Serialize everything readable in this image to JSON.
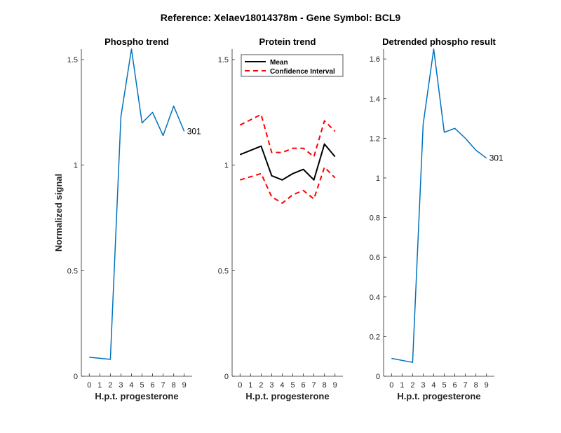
{
  "figure_title": "Reference:  Xelaev18014378m - Gene Symbol:  BCL9",
  "chart_data": [
    {
      "type": "line",
      "title": "Phospho trend",
      "xlabel": "H.p.t. progesterone",
      "ylabel": "Normalized signal",
      "x": [
        0,
        2,
        3,
        4,
        5,
        6,
        7,
        8,
        9
      ],
      "xticks": [
        0,
        1,
        2,
        3,
        4,
        5,
        6,
        7,
        8,
        9
      ],
      "ylim": [
        0,
        1.55
      ],
      "yticks": [
        0,
        0.5,
        1,
        1.5
      ],
      "ytick_labels": [
        "0",
        "0.5",
        "1",
        "1.5"
      ],
      "series": [
        {
          "values": [
            0.09,
            0.08,
            1.23,
            1.55,
            1.2,
            1.25,
            1.14,
            1.28,
            1.16
          ],
          "color": "#0072BD",
          "dash": "solid"
        }
      ],
      "end_label": "301",
      "legend": null
    },
    {
      "type": "line",
      "title": "Protein trend",
      "xlabel": "H.p.t. progesterone",
      "ylabel": "",
      "x": [
        0,
        2,
        3,
        4,
        5,
        6,
        7,
        8,
        9
      ],
      "xticks": [
        0,
        1,
        2,
        3,
        4,
        5,
        6,
        7,
        8,
        9
      ],
      "ylim": [
        0,
        1.55
      ],
      "yticks": [
        0,
        0.5,
        1,
        1.5
      ],
      "ytick_labels": [
        "0",
        "0.5",
        "1",
        "1.5"
      ],
      "series": [
        {
          "name": "Mean",
          "values": [
            1.05,
            1.09,
            0.95,
            0.93,
            0.96,
            0.98,
            0.93,
            1.1,
            1.04
          ],
          "color": "#000000",
          "dash": "solid"
        },
        {
          "name": "Confidence Interval",
          "values": [
            1.19,
            1.24,
            1.06,
            1.06,
            1.08,
            1.08,
            1.04,
            1.21,
            1.16
          ],
          "color": "#FF0000",
          "dash": "dashed"
        },
        {
          "values": [
            0.93,
            0.96,
            0.85,
            0.82,
            0.86,
            0.88,
            0.84,
            0.99,
            0.94
          ],
          "color": "#FF0000",
          "dash": "dashed"
        }
      ],
      "end_label": "",
      "legend": "top-left"
    },
    {
      "type": "line",
      "title": "Detrended phospho result",
      "xlabel": "H.p.t. progesterone",
      "ylabel": "",
      "x": [
        0,
        2,
        3,
        4,
        5,
        6,
        7,
        8,
        9
      ],
      "xticks": [
        0,
        1,
        2,
        3,
        4,
        5,
        6,
        7,
        8,
        9
      ],
      "ylim": [
        0,
        1.65
      ],
      "yticks": [
        0,
        0.2,
        0.4,
        0.6,
        0.8,
        1,
        1.2,
        1.4,
        1.6
      ],
      "ytick_labels": [
        "0",
        "0.2",
        "0.4",
        "0.6",
        "0.8",
        "1",
        "1.2",
        "1.4",
        "1.6"
      ],
      "series": [
        {
          "values": [
            0.09,
            0.07,
            1.27,
            1.65,
            1.23,
            1.25,
            1.2,
            1.14,
            1.1
          ],
          "color": "#0072BD",
          "dash": "solid"
        }
      ],
      "end_label": "301",
      "legend": null
    }
  ]
}
